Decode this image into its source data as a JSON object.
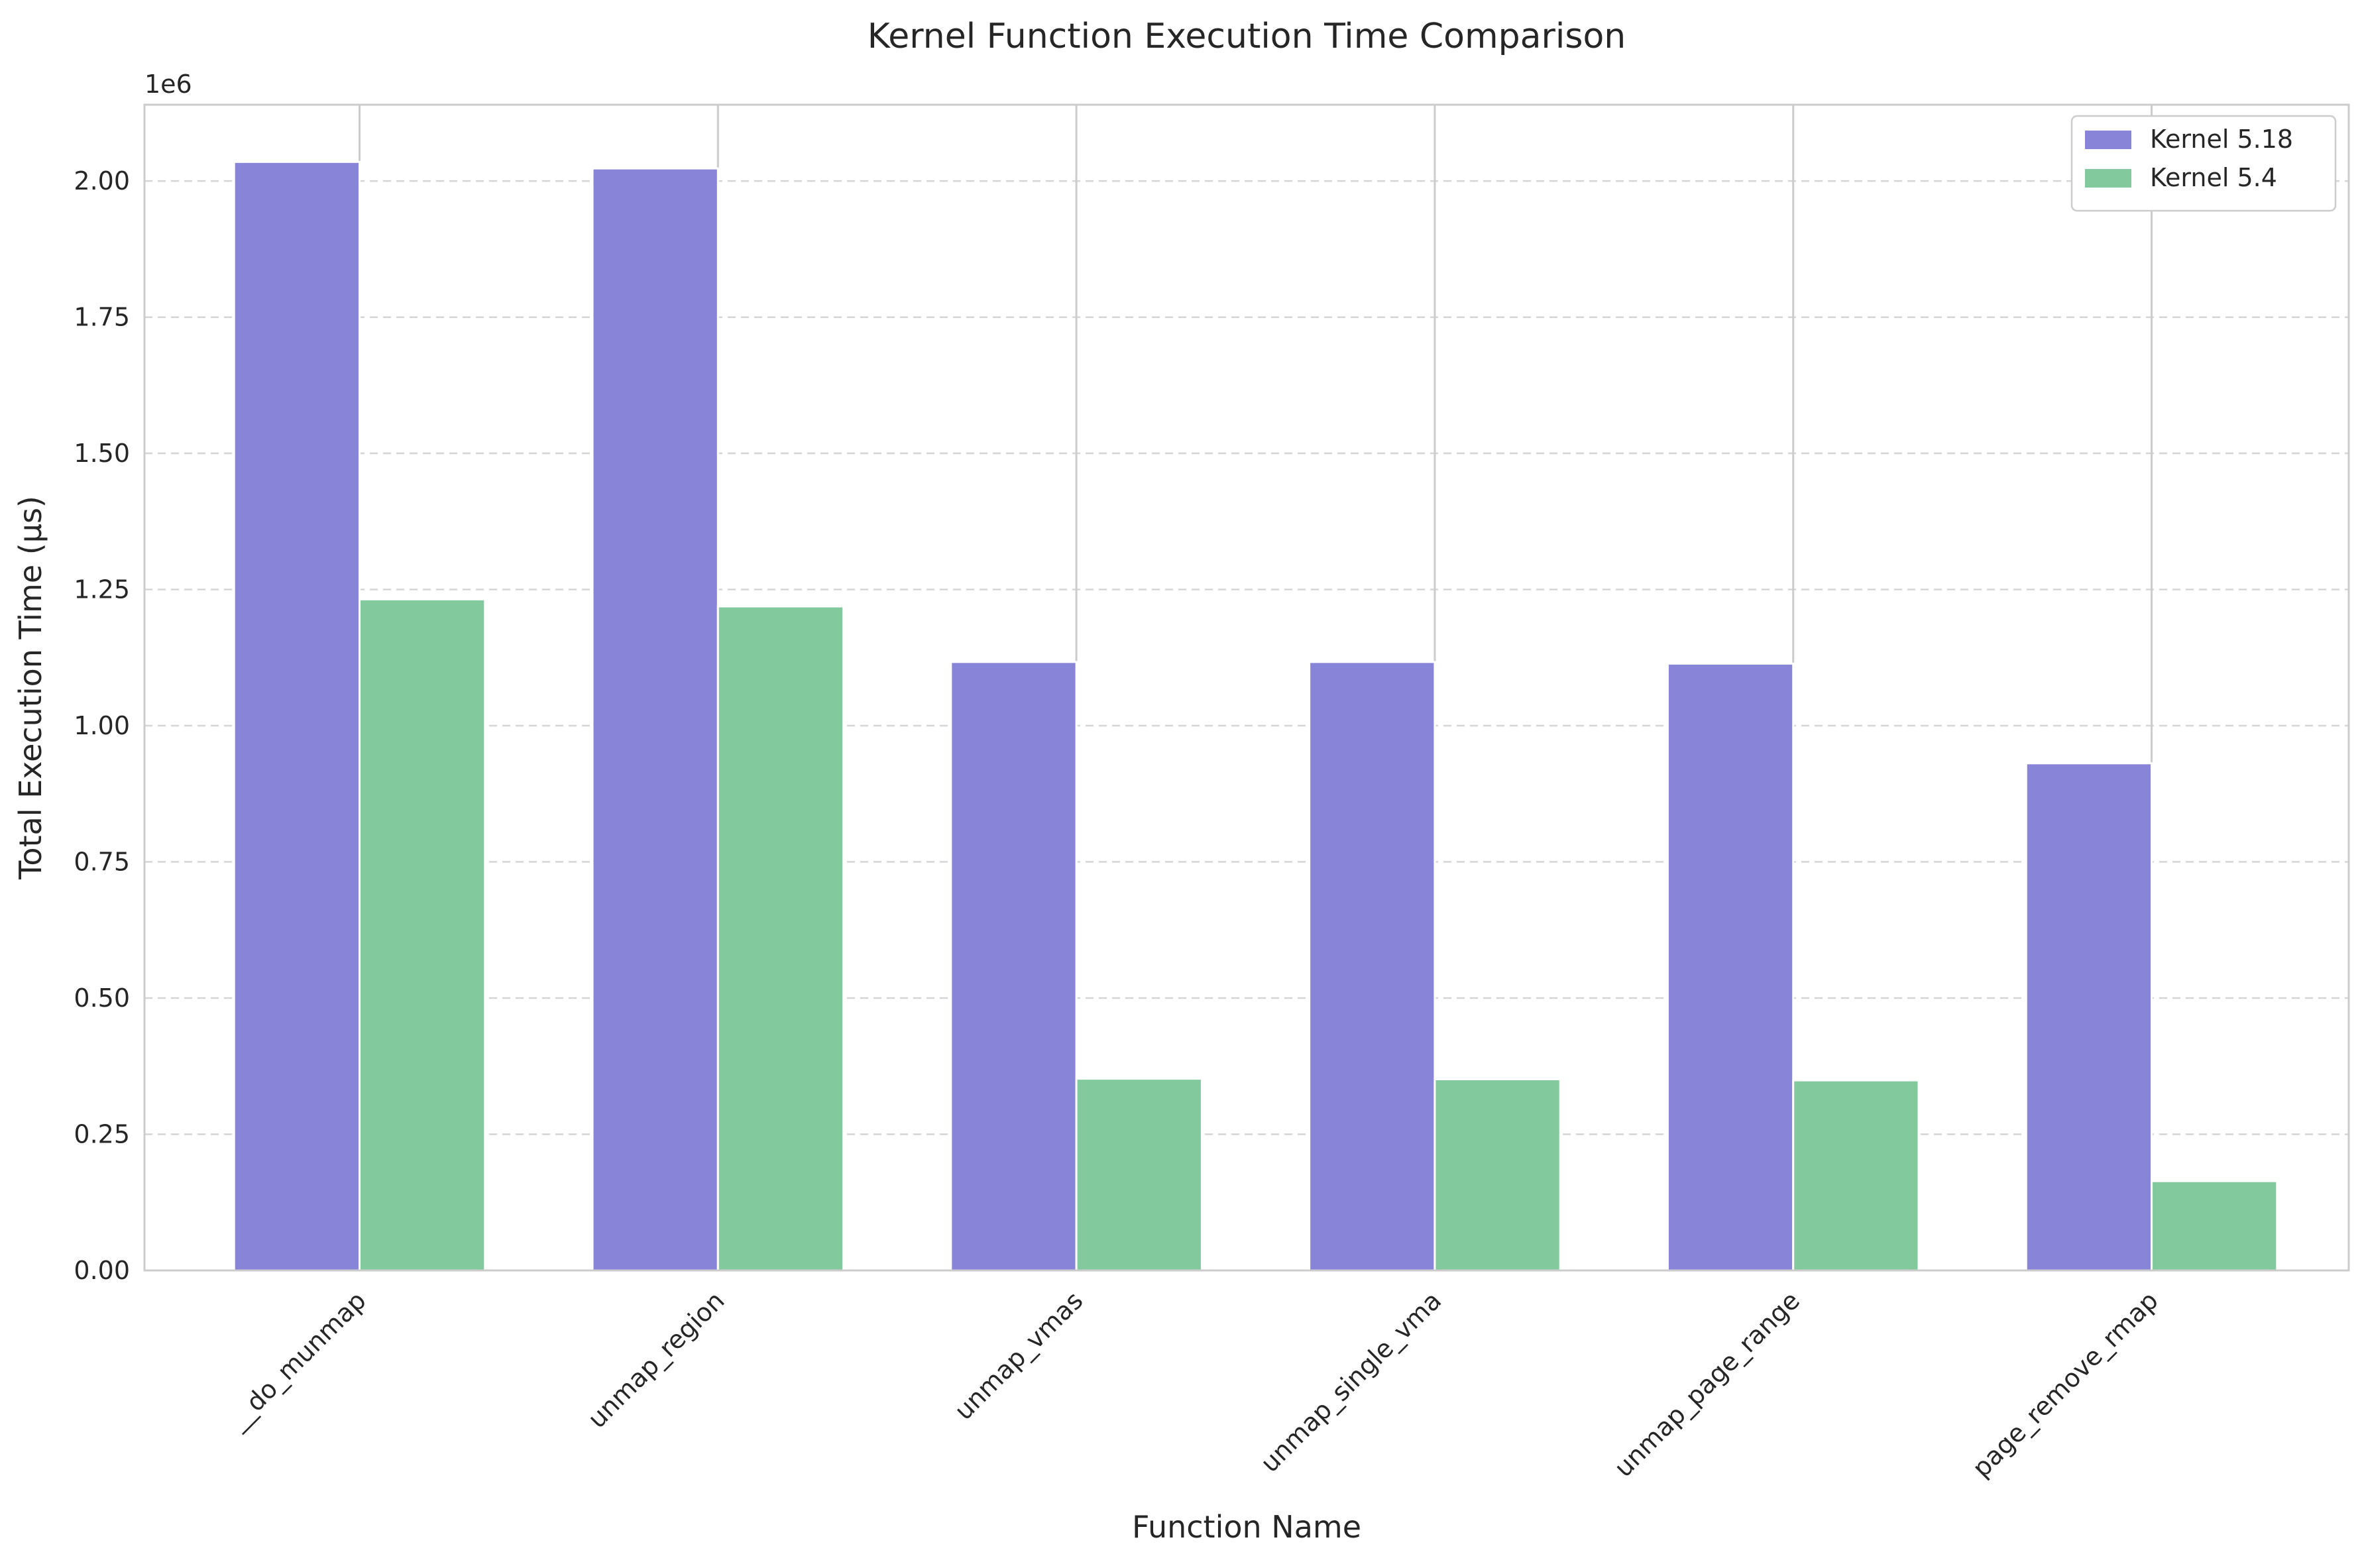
{
  "chart_data": {
    "type": "bar",
    "title": "Kernel Function Execution Time Comparison",
    "xlabel": "Function Name",
    "ylabel": "Total Execution Time (µs)",
    "y_offset_label": "1e6",
    "categories": [
      "__do_munmap",
      "unmap_region",
      "unmap_vmas",
      "unmap_single_vma",
      "unmap_page_range",
      "page_remove_rmap"
    ],
    "series": [
      {
        "name": "Kernel 5.18",
        "color": "#8884d8",
        "values": [
          2035000,
          2023000,
          1117000,
          1117000,
          1114000,
          931000
        ]
      },
      {
        "name": "Kernel 5.4",
        "color": "#82ca9d",
        "values": [
          1232000,
          1219000,
          352000,
          351000,
          349000,
          164000
        ]
      }
    ],
    "ylim": [
      0,
      2140000
    ],
    "yticks": [
      0,
      250000,
      500000,
      750000,
      1000000,
      1250000,
      1500000,
      1750000,
      2000000
    ],
    "ytick_labels": [
      "0.00",
      "0.25",
      "0.50",
      "0.75",
      "1.00",
      "1.25",
      "1.50",
      "1.75",
      "2.00"
    ],
    "grid": "y-dashed",
    "legend_position": "top-right"
  }
}
